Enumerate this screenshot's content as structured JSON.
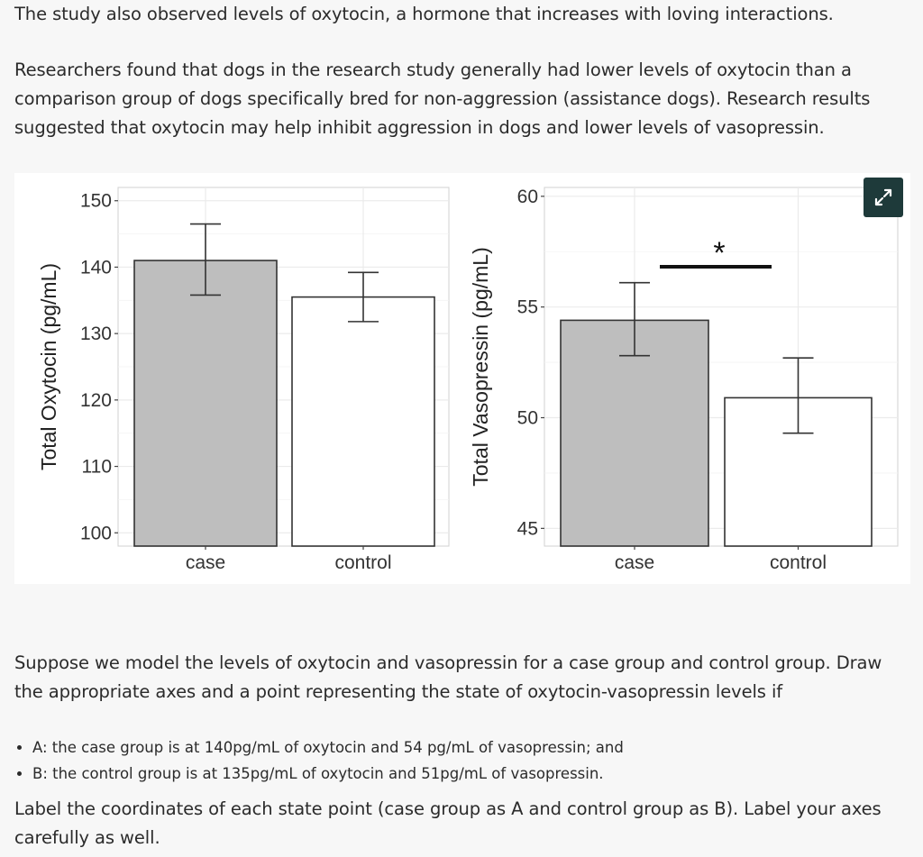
{
  "text": {
    "intro": "The study also observed levels of oxytocin, a hormone that increases with loving interactions.",
    "findings": "Researchers found that dogs in the research study generally had lower levels of oxytocin than a comparison group of dogs specifically bred for non-aggression (assistance dogs).  Research results suggested that oxytocin may help inhibit aggression in dogs and lower levels of vasopressin.",
    "question": "Suppose we model the levels of oxytocin and vasopressin for a case group and control group. Draw the appropriate axes and a point representing the state of oxytocin-vasopressin levels if",
    "items": [
      "A: the case group is at 140pg/mL of oxytocin and 54 pg/mL of vasopressin; and",
      "B: the control group is at 135pg/mL of oxytocin and 51pg/mL of vasopressin."
    ],
    "closing": "Label the coordinates of each state point (case group as A and control group as B).  Label your axes carefully as well."
  },
  "expand_icon": "expand-arrows-icon",
  "colors": {
    "case_fill": "#bebebe",
    "control_fill": "#ffffff",
    "expand_bg": "#1e3a3a"
  },
  "chart_data": [
    {
      "type": "bar",
      "categories": [
        "case",
        "control"
      ],
      "values": [
        141,
        135.5
      ],
      "error": [
        [
          135.8,
          146.5
        ],
        [
          131.8,
          139.2
        ]
      ],
      "ylabel": "Total Oxytocin (pg/mL)",
      "yticks": [
        100,
        110,
        120,
        130,
        140,
        150
      ],
      "ylim": [
        98,
        152
      ],
      "grid": true
    },
    {
      "type": "bar",
      "categories": [
        "case",
        "control"
      ],
      "values": [
        54.4,
        50.9
      ],
      "error": [
        [
          52.8,
          56.1
        ],
        [
          49.3,
          52.7
        ]
      ],
      "ylabel": "Total Vasopressin (pg/mL)",
      "yticks": [
        45,
        50,
        55,
        60
      ],
      "ylim": [
        44.2,
        60.4
      ],
      "grid": true,
      "annotation": "*"
    }
  ]
}
